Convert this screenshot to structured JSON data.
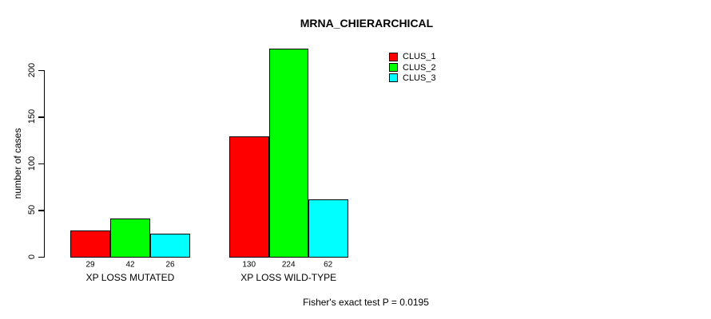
{
  "chart_data": {
    "type": "bar",
    "title": "MRNA_CHIERARCHICAL",
    "xlabel": "",
    "ylabel": "number of cases",
    "categories": [
      "XP LOSS MUTATED",
      "XP LOSS WILD-TYPE"
    ],
    "series": [
      {
        "name": "CLUS_1",
        "color": "#FF0000",
        "values": [
          29,
          130
        ]
      },
      {
        "name": "CLUS_2",
        "color": "#00FF00",
        "values": [
          42,
          224
        ]
      },
      {
        "name": "CLUS_3",
        "color": "#00FFFF",
        "values": [
          26,
          62
        ]
      }
    ],
    "yticks": [
      0,
      50,
      100,
      150,
      200
    ],
    "ylim": [
      0,
      235
    ],
    "grid": false,
    "bar_borders": "#000000",
    "legend_position": "top-right",
    "bar_value_labels_shown": true,
    "annotation": "Fisher's exact test P = 0.0195"
  }
}
